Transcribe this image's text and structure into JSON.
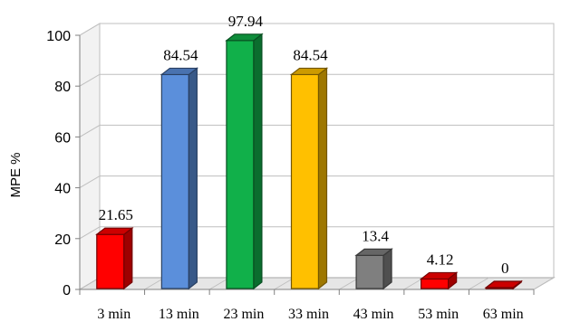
{
  "chart_data": {
    "type": "bar",
    "categories": [
      "3 min",
      "13 min",
      "23 min",
      "33 min",
      "43 min",
      "53 min",
      "63 min"
    ],
    "values": [
      21.65,
      84.54,
      97.94,
      84.54,
      13.4,
      4.12,
      0
    ],
    "data_labels": [
      "21.65",
      "84.54",
      "97.94",
      "84.54",
      "13.4",
      "4.12",
      "0"
    ],
    "title": "",
    "xlabel": "",
    "ylabel": "MPE %",
    "ylim": [
      0,
      100
    ],
    "yticks": [
      0,
      20,
      40,
      60,
      80,
      100
    ],
    "grid": "horizontal",
    "style": "3d",
    "colors": [
      "#ff0000",
      "#5b8fdb",
      "#11b04a",
      "#ffc000",
      "#7f7f7f",
      "#ff0000",
      "#ff0000"
    ],
    "legend": "none"
  }
}
